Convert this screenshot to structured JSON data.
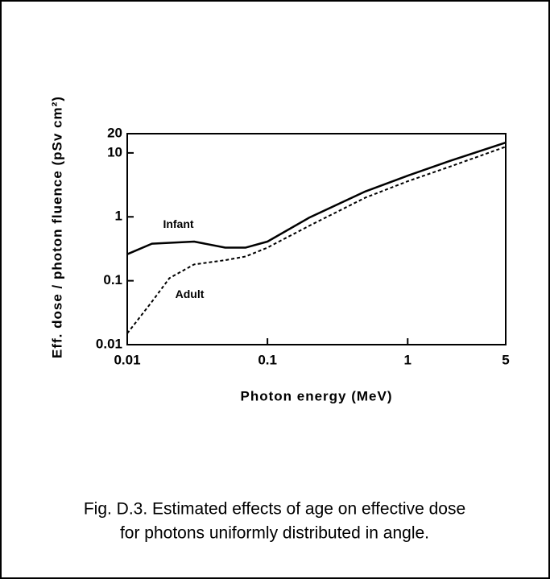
{
  "chart_data": {
    "type": "line",
    "xlabel": "Photon energy (MeV)",
    "ylabel": "Eff. dose / photon fluence (pSv cm²)",
    "caption": [
      "Fig. D.3.  Estimated effects of age on effective dose",
      "for photons uniformly distributed in angle."
    ],
    "log_x": true,
    "log_y": true,
    "xlim": [
      0.01,
      5
    ],
    "xticks": [
      0.01,
      0.1,
      1,
      5
    ],
    "ylim": [
      0.01,
      20
    ],
    "yticks": [
      0.01,
      0.1,
      1,
      10,
      20
    ],
    "series": [
      {
        "name": "Infant",
        "color": "#000000",
        "dashed": false,
        "x": [
          0.01,
          0.015,
          0.03,
          0.05,
          0.07,
          0.1,
          0.2,
          0.5,
          1,
          2,
          5
        ],
        "values": [
          0.26,
          0.38,
          0.41,
          0.33,
          0.33,
          0.41,
          0.98,
          2.5,
          4.4,
          7.5,
          14.5
        ]
      },
      {
        "name": "Adult",
        "color": "#000000",
        "dashed": true,
        "x": [
          0.01,
          0.015,
          0.02,
          0.03,
          0.05,
          0.07,
          0.1,
          0.2,
          0.5,
          1,
          2,
          5
        ],
        "values": [
          0.015,
          0.047,
          0.11,
          0.18,
          0.21,
          0.24,
          0.33,
          0.73,
          2.0,
          3.6,
          6.1,
          12.5
        ]
      }
    ]
  }
}
